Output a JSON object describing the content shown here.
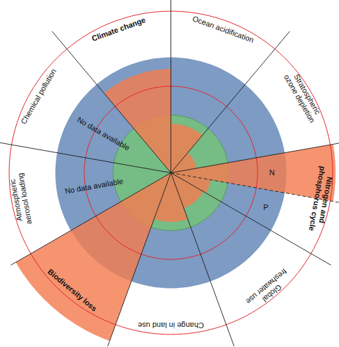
{
  "chart_data": {
    "type": "radial_bar",
    "categories": [
      "Climate change",
      "Ocean acidification",
      "Stratospheric ozone depletion",
      "Nitrogen and phosphorus cycle",
      "Global freshwater use",
      "Change in land use",
      "Biodiversity loss",
      "Atmospheric aerosol loading",
      "Chemical pollution"
    ],
    "values": [
      1.8,
      0.85,
      0.45,
      null,
      0.65,
      0.85,
      3.1,
      null,
      null
    ],
    "sub_wedges": {
      "category": "Nitrogen and phosphorus cycle",
      "labels": [
        "N",
        "P"
      ],
      "values": [
        2.85,
        0.7
      ]
    },
    "annotations": [
      {
        "category": "Atmospheric aerosol loading",
        "text": "No data available"
      },
      {
        "category": "Chemical pollution",
        "text": "No data available"
      }
    ],
    "boundary": 1,
    "rings": [
      1.5,
      2.8
    ],
    "rlim": [
      0,
      3.2
    ],
    "color": "#f47c50",
    "tick_labels": false
  }
}
